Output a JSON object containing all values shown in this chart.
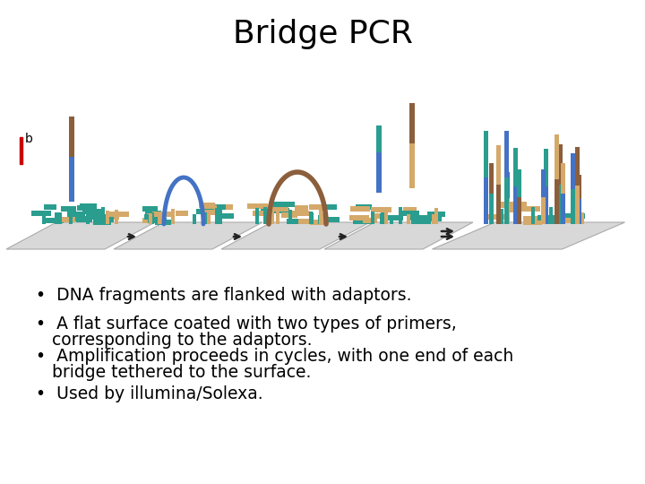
{
  "title": "Bridge PCR",
  "title_fontsize": 26,
  "background_color": "#ffffff",
  "label_b_color": "#000000",
  "red_bar_color": "#cc0000",
  "bullet_points_line1": [
    "DNA fragments are flanked with adaptors.",
    "A flat surface coated with two types of primers,",
    "Amplification proceeds in cycles, with one end of each",
    "Used by illumina/Solexa."
  ],
  "bullet_points_line2": [
    "",
    "corresponding to the adaptors.",
    "bridge tethered to the surface.",
    ""
  ],
  "bullet_fontsize": 13.5,
  "surface_color": "#d8d8d8",
  "surface_edge_color": "#aaaaaa",
  "teal_color": "#2a9d8f",
  "brown_color": "#8B5E3C",
  "tan_color": "#D4A96A",
  "blue_color": "#4472c4",
  "arrow_color": "#222222"
}
